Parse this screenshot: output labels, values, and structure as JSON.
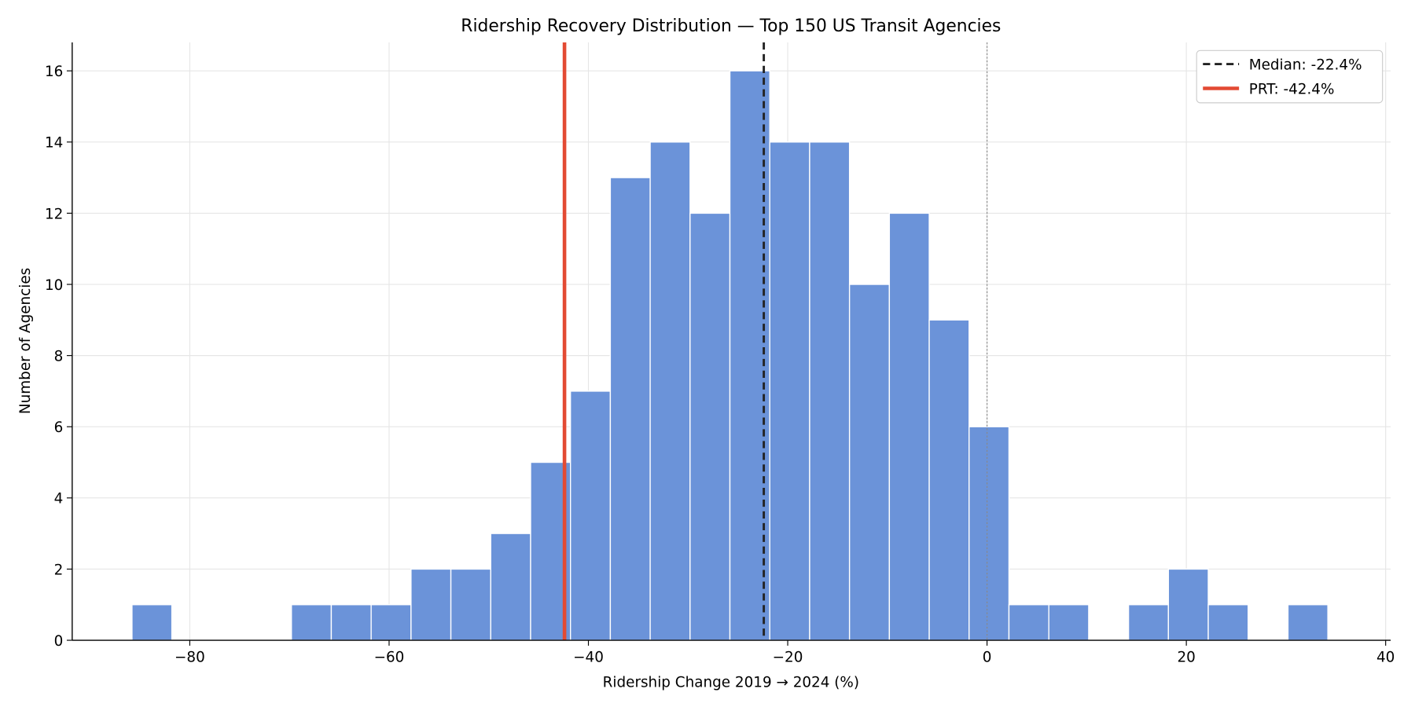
{
  "chart_data": {
    "type": "bar",
    "title": "Ridership Recovery Distribution — Top 150 US Transit Agencies",
    "xlabel": "Ridership Change 2019 → 2024 (%)",
    "ylabel": "Number of Agencies",
    "xlim": [
      -91.8,
      40.5
    ],
    "ylim": [
      0,
      16.8
    ],
    "xticks": [
      -80,
      -60,
      -40,
      -20,
      0,
      20,
      40
    ],
    "xtick_labels": [
      "−80",
      "−60",
      "−40",
      "−20",
      "0",
      "20",
      "40"
    ],
    "yticks": [
      0,
      2,
      4,
      6,
      8,
      10,
      12,
      14,
      16
    ],
    "grid": true,
    "bar_color": "#6b93d9",
    "bin_start": -85.8,
    "bin_width": 4.0,
    "counts": [
      1,
      0,
      0,
      0,
      1,
      1,
      1,
      2,
      2,
      3,
      5,
      7,
      13,
      14,
      12,
      16,
      14,
      14,
      10,
      12,
      9,
      6,
      1,
      1,
      0,
      1,
      2,
      1,
      0,
      1
    ],
    "reference_lines": [
      {
        "name": "Median: -22.4%",
        "x": -22.4,
        "color": "#222222",
        "style": "dashed"
      },
      {
        "name": "PRT: -42.4%",
        "x": -42.4,
        "color": "#e34a33",
        "style": "solid"
      },
      {
        "x": 0,
        "color": "#888888",
        "style": "dotted"
      }
    ],
    "legend": {
      "position": "top-right",
      "entries": [
        "Median: -22.4%",
        "PRT: -42.4%"
      ]
    }
  }
}
